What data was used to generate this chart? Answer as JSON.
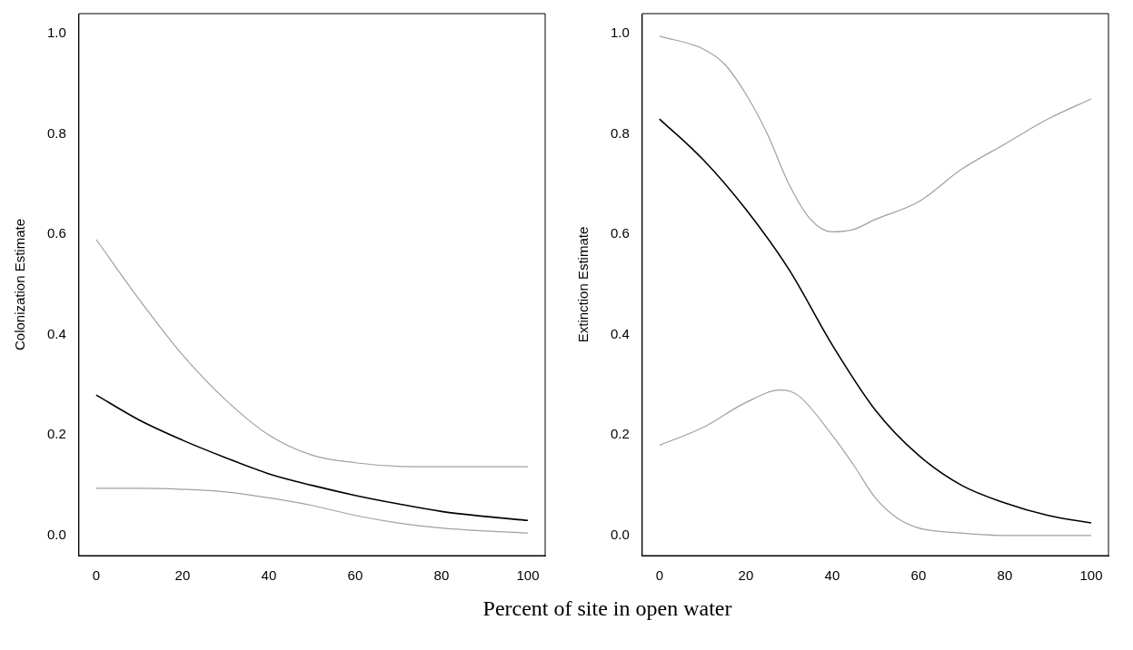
{
  "chart_data": [
    {
      "type": "line",
      "xlabel": "Percent of site in open water",
      "ylabel": "Colonization Estimate",
      "xlim": [
        -4,
        104
      ],
      "ylim": [
        -0.04,
        1.04
      ],
      "xticks": [
        0,
        20,
        40,
        60,
        80,
        100
      ],
      "yticks": [
        {
          "value": 0,
          "label": "0.0"
        },
        {
          "value": 0.2,
          "label": "0.2"
        },
        {
          "value": 0.4,
          "label": "0.4"
        },
        {
          "value": 0.6,
          "label": "0.6"
        },
        {
          "value": 0.8,
          "label": "0.8"
        },
        {
          "value": 1,
          "label": "1.0"
        }
      ],
      "grid": false,
      "legend": false,
      "marker": "none",
      "line_style": "solid",
      "series": [
        {
          "color": "#000000",
          "x": [
            0,
            10,
            20,
            30,
            40,
            50,
            60,
            70,
            80,
            90,
            100
          ],
          "values": [
            0.28,
            0.23,
            0.19,
            0.155,
            0.123,
            0.1,
            0.08,
            0.063,
            0.048,
            0.038,
            0.03
          ]
        },
        {
          "color": "#a0a0a0",
          "x": [
            0,
            10,
            20,
            30,
            40,
            50,
            60,
            70,
            80,
            90,
            100
          ],
          "values": [
            0.59,
            0.47,
            0.36,
            0.27,
            0.2,
            0.16,
            0.145,
            0.138,
            0.137,
            0.137,
            0.137
          ]
        },
        {
          "color": "#a0a0a0",
          "x": [
            0,
            10,
            20,
            30,
            40,
            50,
            60,
            70,
            80,
            90,
            100
          ],
          "values": [
            0.094,
            0.094,
            0.092,
            0.087,
            0.075,
            0.06,
            0.04,
            0.025,
            0.015,
            0.009,
            0.005
          ]
        }
      ]
    },
    {
      "type": "line",
      "ylabel": "Extinction Estimate",
      "xlim": [
        -4,
        104
      ],
      "ylim": [
        -0.04,
        1.04
      ],
      "xticks": [
        0,
        20,
        40,
        60,
        80,
        100
      ],
      "yticks": [
        {
          "value": 0,
          "label": "0.0"
        },
        {
          "value": 0.2,
          "label": "0.2"
        },
        {
          "value": 0.4,
          "label": "0.4"
        },
        {
          "value": 0.6,
          "label": "0.6"
        },
        {
          "value": 0.8,
          "label": "0.8"
        },
        {
          "value": 1,
          "label": "1.0"
        }
      ],
      "grid": false,
      "legend": false,
      "marker": "none",
      "line_style": "solid",
      "series": [
        {
          "color": "#000000",
          "x": [
            0,
            10,
            20,
            30,
            40,
            50,
            60,
            70,
            80,
            90,
            100
          ],
          "values": [
            0.83,
            0.75,
            0.65,
            0.53,
            0.38,
            0.25,
            0.16,
            0.1,
            0.065,
            0.04,
            0.025
          ]
        },
        {
          "color": "#a0a0a0",
          "x": [
            0,
            10,
            15,
            20,
            25,
            30,
            35,
            40,
            45,
            50,
            60,
            70,
            80,
            90,
            100
          ],
          "values": [
            0.995,
            0.97,
            0.94,
            0.88,
            0.8,
            0.7,
            0.63,
            0.605,
            0.61,
            0.63,
            0.665,
            0.73,
            0.78,
            0.83,
            0.87
          ]
        },
        {
          "color": "#a0a0a0",
          "x": [
            0,
            10,
            20,
            28,
            32,
            40,
            45,
            50,
            55,
            60,
            70,
            80,
            100
          ],
          "values": [
            0.18,
            0.215,
            0.265,
            0.29,
            0.28,
            0.2,
            0.14,
            0.075,
            0.035,
            0.015,
            0.005,
            0,
            0
          ]
        }
      ]
    }
  ]
}
